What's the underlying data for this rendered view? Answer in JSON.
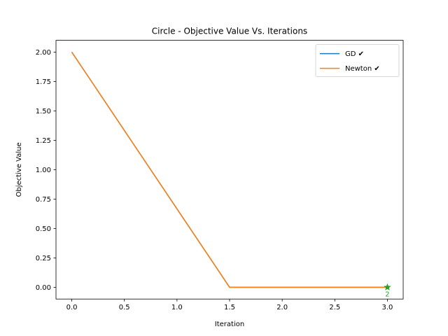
{
  "chart_data": {
    "type": "line",
    "title": "Circle - Objective Value Vs. Iterations",
    "xlabel": "Iteration",
    "ylabel": "Objective Value",
    "xlim": [
      -0.15,
      3.15
    ],
    "ylim": [
      -0.1,
      2.1
    ],
    "xticks": [
      0.0,
      0.5,
      1.0,
      1.5,
      2.0,
      2.5,
      3.0
    ],
    "xtick_labels": [
      "0.0",
      "0.5",
      "1.0",
      "1.5",
      "2.0",
      "2.5",
      "3.0"
    ],
    "yticks": [
      0.0,
      0.25,
      0.5,
      0.75,
      1.0,
      1.25,
      1.5,
      1.75,
      2.0
    ],
    "ytick_labels": [
      "0.00",
      "0.25",
      "0.50",
      "0.75",
      "1.00",
      "1.25",
      "1.50",
      "1.75",
      "2.00"
    ],
    "grid": false,
    "legend_position": "top-right",
    "series": [
      {
        "name": "GD ✔",
        "color": "#1f77b4",
        "x": [
          0,
          1.5,
          3
        ],
        "y": [
          2.0,
          0.0,
          0.0
        ]
      },
      {
        "name": "Newton ✔",
        "color": "#ff7f0e",
        "x": [
          0,
          1.5,
          3
        ],
        "y": [
          2.0,
          0.0,
          0.0
        ]
      }
    ],
    "annotations": [
      {
        "marker": "star",
        "color": "#2ca02c",
        "x": 3.0,
        "y": 0.0,
        "text": "2"
      }
    ]
  }
}
